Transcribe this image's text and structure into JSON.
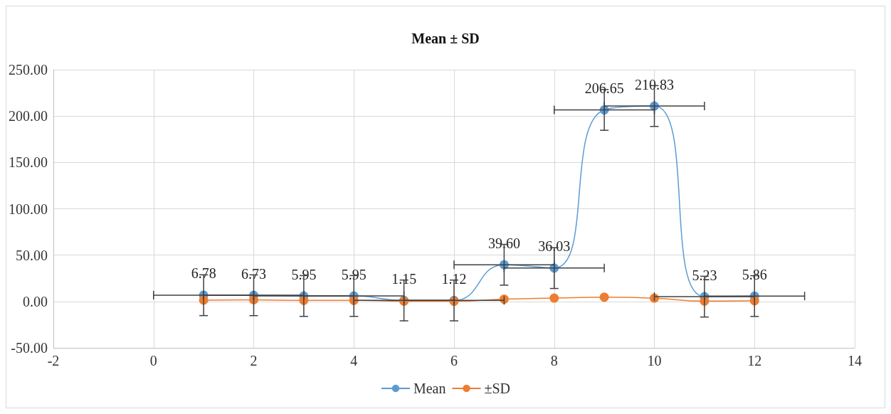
{
  "chart_data": {
    "type": "line",
    "title": "Mean ± SD",
    "x": [
      1,
      2,
      3,
      4,
      5,
      6,
      7,
      8,
      9,
      10,
      11,
      12
    ],
    "series": [
      {
        "name": "Mean",
        "color": "#5b9bd5",
        "values": [
          6.78,
          6.73,
          5.95,
          5.95,
          1.15,
          1.12,
          39.6,
          36.03,
          206.65,
          210.83,
          5.23,
          5.86
        ],
        "value_labels": [
          "6.78",
          "6.73",
          "5.95",
          "5.95",
          "1.15",
          "1.12",
          "39.60",
          "36.03",
          "206.65",
          "210.83",
          "5.23",
          "5.86"
        ],
        "errors": [
          22,
          22,
          22,
          22,
          22,
          22,
          22,
          22,
          22,
          22,
          22,
          22
        ],
        "xerrors": [
          1,
          1,
          1,
          1,
          1,
          1,
          1,
          1,
          1,
          1,
          1,
          1
        ]
      },
      {
        "name": "±SD",
        "color": "#ed7d31",
        "values": [
          1.5,
          1.8,
          1.2,
          1.2,
          0.3,
          0.2,
          2.5,
          3.7,
          4.6,
          3.6,
          0.4,
          0.8
        ]
      }
    ],
    "xlim": [
      -2,
      14
    ],
    "xticks": [
      -2,
      0,
      2,
      4,
      6,
      8,
      10,
      12,
      14
    ],
    "ylim": [
      -50,
      250
    ],
    "yticks": [
      {
        "value": -50,
        "label": "-50.00"
      },
      {
        "value": 0,
        "label": "0.00"
      },
      {
        "value": 50,
        "label": "50.00"
      },
      {
        "value": 100,
        "label": "100.00"
      },
      {
        "value": 150,
        "label": "150.00"
      },
      {
        "value": 200,
        "label": "200.00"
      },
      {
        "value": 250,
        "label": "250.00"
      }
    ],
    "grid": true,
    "legend": "bottom",
    "marker": "circle",
    "line_style": "solid"
  }
}
